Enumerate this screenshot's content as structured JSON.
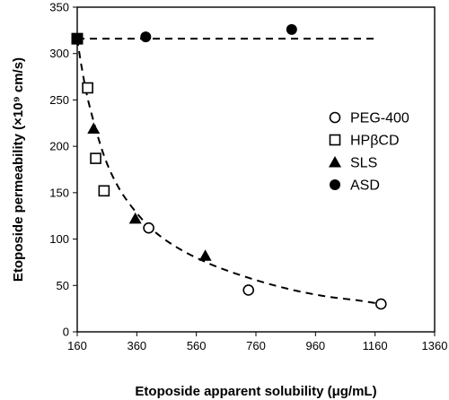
{
  "chart_data": {
    "type": "scatter",
    "title": "",
    "xlabel": "Etoposide apparent solubility (μg/mL)",
    "ylabel": "Etoposide permeability (×10⁹ cm/s)",
    "xlim": [
      160,
      1360
    ],
    "ylim": [
      0,
      350
    ],
    "xticks": [
      160,
      360,
      560,
      760,
      960,
      1160,
      1360
    ],
    "yticks": [
      0,
      50,
      100,
      150,
      200,
      250,
      300,
      350
    ],
    "grid": false,
    "legend_position": "right",
    "series": [
      {
        "name": "PEG-400",
        "marker": "open-circle",
        "points": [
          [
            400,
            112
          ],
          [
            735,
            45
          ],
          [
            1180,
            30
          ]
        ]
      },
      {
        "name": "HPβCD",
        "marker": "open-square",
        "points": [
          [
            195,
            263
          ],
          [
            222,
            187
          ],
          [
            250,
            152
          ]
        ]
      },
      {
        "name": "SLS",
        "marker": "filled-triangle",
        "points": [
          [
            215,
            219
          ],
          [
            355,
            122
          ],
          [
            590,
            82
          ]
        ]
      },
      {
        "name": "ASD",
        "marker": "filled-circle",
        "points": [
          [
            160,
            316
          ],
          [
            390,
            318
          ],
          [
            880,
            326
          ]
        ]
      }
    ],
    "reference_marker": {
      "marker": "filled-square",
      "point": [
        160,
        316
      ]
    },
    "dashed_lines": {
      "horizontal_y": 316,
      "fit_curve": {
        "type": "power",
        "points": [
          [
            160,
            316
          ],
          [
            175,
            285
          ],
          [
            200,
            245
          ],
          [
            250,
            190
          ],
          [
            300,
            155
          ],
          [
            360,
            128
          ],
          [
            420,
            108
          ],
          [
            500,
            90
          ],
          [
            600,
            74
          ],
          [
            700,
            62
          ],
          [
            800,
            52
          ],
          [
            900,
            44
          ],
          [
            1000,
            38
          ],
          [
            1100,
            34
          ],
          [
            1180,
            30
          ]
        ]
      }
    }
  }
}
